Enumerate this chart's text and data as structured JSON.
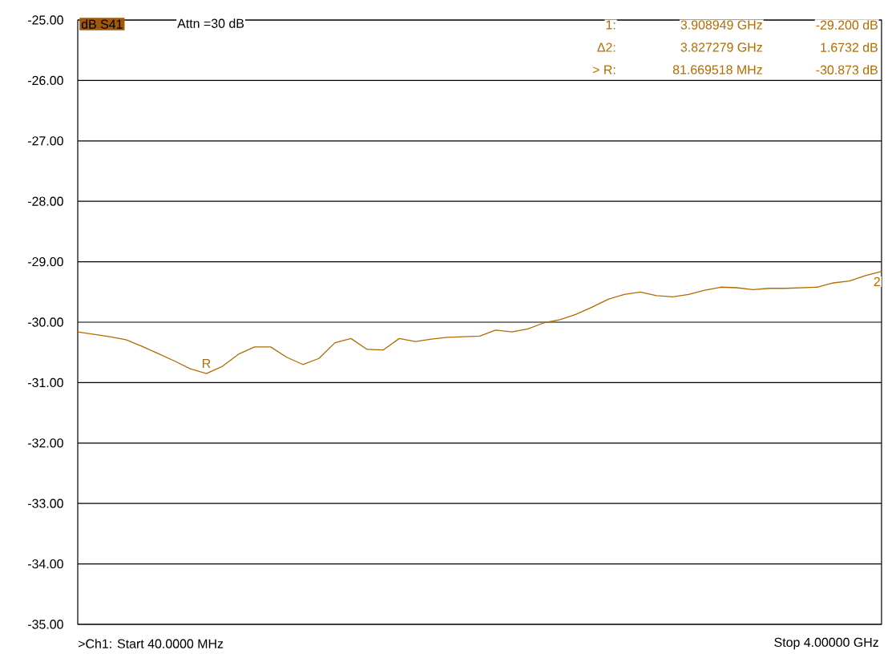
{
  "chart_data": {
    "type": "line",
    "title": "dB S41",
    "subtitle": "Attn =30 dB",
    "annotations": [
      "1:",
      "3.908949 GHz",
      "-29.200 dB",
      "Δ2:",
      "3.827279 GHz",
      "1.6732 dB",
      "> R:",
      "81.669518 MHz",
      "-30.873 dB",
      "R",
      "2",
      ">Ch1: Start 40.0000 MHz",
      "Stop 4.00000 GHz"
    ],
    "categories": [
      null,
      null,
      null,
      null,
      null,
      null,
      null,
      null,
      null,
      null,
      null,
      null,
      null,
      null,
      null,
      null,
      null,
      null,
      null,
      null,
      null,
      null,
      null,
      null,
      null,
      null,
      null,
      null,
      null,
      null,
      null,
      null,
      null,
      null,
      null,
      null,
      null,
      null,
      null,
      null,
      null,
      null,
      null,
      null,
      null,
      null,
      null,
      null,
      null,
      null,
      null
    ],
    "series": [
      {
        "color": "#b36b00",
        "values": [
          -30.16,
          -30.2,
          -30.24,
          -30.29,
          -30.4,
          -30.52,
          -30.64,
          -30.77,
          -30.85,
          -30.73,
          -30.53,
          -30.41,
          -30.41,
          -30.58,
          -30.7,
          -30.6,
          -30.34,
          -30.27,
          -30.45,
          -30.46,
          -30.27,
          -30.32,
          -30.28,
          -30.25,
          -30.24,
          -30.23,
          -30.13,
          -30.16,
          -30.11,
          -30.01,
          -29.96,
          -29.87,
          -29.75,
          -29.62,
          -29.54,
          -29.5,
          -29.56,
          -29.58,
          -29.54,
          -29.47,
          -29.42,
          -29.43,
          -29.46,
          -29.44,
          -29.44,
          -29.43,
          -29.42,
          -29.35,
          -29.32,
          -29.23,
          -29.16
        ]
      }
    ],
    "grid": "y",
    "tick_labels": "y",
    "marker": "none",
    "line_style": "solid",
    "ylim": [
      -35,
      -25
    ],
    "yticks": [
      {
        "value": -35,
        "label": "-35.00"
      },
      {
        "value": -34,
        "label": "-34.00"
      },
      {
        "value": -33,
        "label": "-33.00"
      },
      {
        "value": -32,
        "label": "-32.00"
      },
      {
        "value": -31,
        "label": "-31.00"
      },
      {
        "value": -30,
        "label": "-30.00"
      },
      {
        "value": -29,
        "label": "-29.00"
      },
      {
        "value": -28,
        "label": "-28.00"
      },
      {
        "value": -27,
        "label": "-27.00"
      },
      {
        "value": -26,
        "label": "-26.00"
      },
      {
        "value": -25,
        "label": "-25.00"
      }
    ]
  }
}
